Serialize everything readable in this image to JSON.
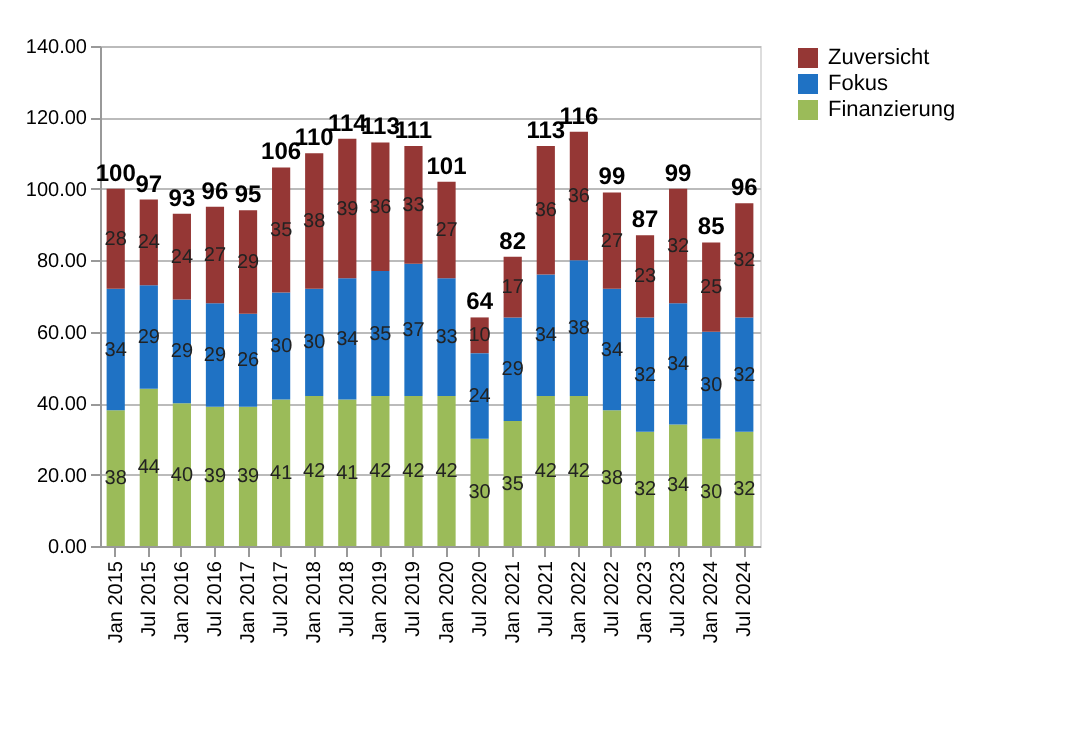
{
  "chart_data": {
    "type": "bar",
    "stacked": true,
    "data_labels": true,
    "grid": "y",
    "legend": "right",
    "categories": [
      "Jan 2015",
      "Jul 2015",
      "Jan 2016",
      "Jul 2016",
      "Jan 2017",
      "Jul 2017",
      "Jan 2018",
      "Jul 2018",
      "Jan 2019",
      "Jul 2019",
      "Jan 2020",
      "Jul 2020",
      "Jan 2021",
      "Jul 2021",
      "Jan 2022",
      "Jul 2022",
      "Jan 2023",
      "Jul 2023",
      "Jan 2024",
      "Jul 2024"
    ],
    "series": [
      {
        "name": "Finanzierung",
        "color": "#9bbb59",
        "values": [
          38,
          44,
          40,
          39,
          39,
          41,
          42,
          41,
          42,
          42,
          42,
          30,
          35,
          42,
          42,
          38,
          32,
          34,
          30,
          32
        ]
      },
      {
        "name": "Fokus",
        "color": "#1f72c4",
        "values": [
          34,
          29,
          29,
          29,
          26,
          30,
          30,
          34,
          35,
          37,
          33,
          24,
          29,
          34,
          38,
          34,
          32,
          34,
          30,
          32
        ]
      },
      {
        "name": "Zuversicht",
        "color": "#953735",
        "values": [
          28,
          24,
          24,
          27,
          29,
          35,
          38,
          39,
          36,
          33,
          27,
          10,
          17,
          36,
          36,
          27,
          23,
          32,
          25,
          32
        ]
      }
    ],
    "totals": [
      "100",
      "97",
      "93",
      "96",
      "95",
      "106",
      "110",
      "114",
      "113",
      "111",
      "101",
      "64",
      "82",
      "113",
      "116",
      "99",
      "87",
      "99",
      "85",
      "96"
    ],
    "ylim": [
      0,
      140
    ],
    "yticks": [
      {
        "value": 0,
        "label": "0.00"
      },
      {
        "value": 20,
        "label": "20.00"
      },
      {
        "value": 40,
        "label": "40.00"
      },
      {
        "value": 60,
        "label": "60.00"
      },
      {
        "value": 80,
        "label": "80.00"
      },
      {
        "value": 100,
        "label": "100.00"
      },
      {
        "value": 120,
        "label": "120.00"
      },
      {
        "value": 140,
        "label": "140.00"
      }
    ]
  }
}
